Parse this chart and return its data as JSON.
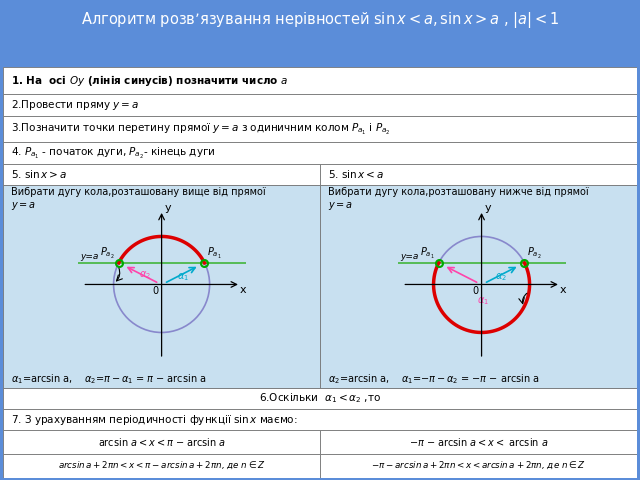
{
  "title": "Алгоритм розв’язування нерівностей $\\sin x < a, \\sin x > a$ , $|a| < 1$",
  "title_bg": "#5B8DD9",
  "title_color": "white",
  "content_bg": "#C8E0F0",
  "row_bg": "white",
  "row1": "1. На  осі $Oy$ (лінія синусів) позначити число $a$",
  "row2": "2.Провести пряму $y=a$",
  "row3": "3.Позначити точки перетину прямої $y=a$ з одиничним колом $P_{a_1}$ і $P_{a_2}$",
  "row4": "4. $P_{a_1}$ - початок дуги, $P_{a_2}$- кінець дуги",
  "col1_head": "5. $\\sin x > a$",
  "col2_head": "5. $\\sin x < a$",
  "col1_desc": "Вибрати дугу кола,розташовану вище від прямої\n$y=a$",
  "col2_desc": "Вибрати дугу кола,розташовану нижче від прямої\n$y=a$",
  "formula_left": "$\\alpha_1$=arcsin a,    $\\alpha_2$=$\\pi - \\alpha_1$ = $\\pi$ − arcsin a",
  "formula_right": "$\\alpha_2$=arcsin a,    $\\alpha_1$=$-\\pi - \\alpha_2$ = $-\\pi$ − arcsin a",
  "row6": "6.Оскільки  $\\alpha_1< \\alpha_2$ ,то",
  "res_left": "arcsin $a < x < \\pi$ − arcsin $a$",
  "res_right": "$-\\pi$ − arcsin $a < x <$ arcsin $a$",
  "row7": "7. З урахуванням періодичності функції $\\sin x$ маємо:",
  "final_left": "$arcsin\\,a + 2\\pi n < x < \\pi - arcsin\\,a + 2\\pi n$, де $n \\in Z$",
  "final_right": "$-\\pi - arcsin\\,a + 2\\pi n < x < arcsin\\,a + 2\\pi n$, де $n \\in Z$",
  "circle_color": "#8888CC",
  "arc_color": "#DD0000",
  "line_color": "#55BB55",
  "arrow_magenta": "#FF44AA",
  "arrow_cyan": "#00AACC",
  "point_color": "#00AA00",
  "a_val": 0.45
}
